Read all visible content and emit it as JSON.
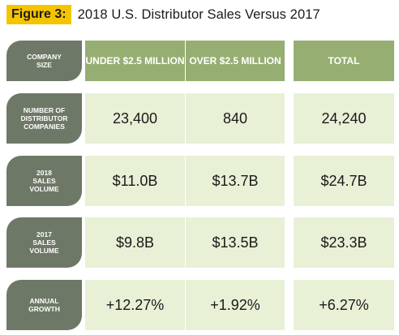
{
  "figure": {
    "label": "Figure 3:",
    "title": "2018 U.S. Distributor Sales Versus 2017"
  },
  "table": {
    "corner_label": "COMPANY\nSIZE",
    "columns": [
      "UNDER $2.5 MILLION",
      "OVER $2.5 MILLION",
      "TOTAL"
    ],
    "rows": [
      {
        "label": "NUMBER OF\nDISTRIBUTOR\nCOMPANIES",
        "values": [
          "23,400",
          "840",
          "24,240"
        ]
      },
      {
        "label": "2018\nSALES\nVOLUME",
        "values": [
          "$11.0B",
          "$13.7B",
          "$24.7B"
        ]
      },
      {
        "label": "2017\nSALES\nVOLUME",
        "values": [
          "$9.8B",
          "$13.5B",
          "$23.3B"
        ]
      },
      {
        "label": "ANNUAL\nGROWTH",
        "values": [
          "+12.27%",
          "+1.92%",
          "+6.27%"
        ]
      }
    ]
  },
  "colors": {
    "title_highlight": "#f5c400",
    "row_label_bg": "#6e7866",
    "header_bg": "#96ae72",
    "cell_bg": "#e8f0d6"
  }
}
